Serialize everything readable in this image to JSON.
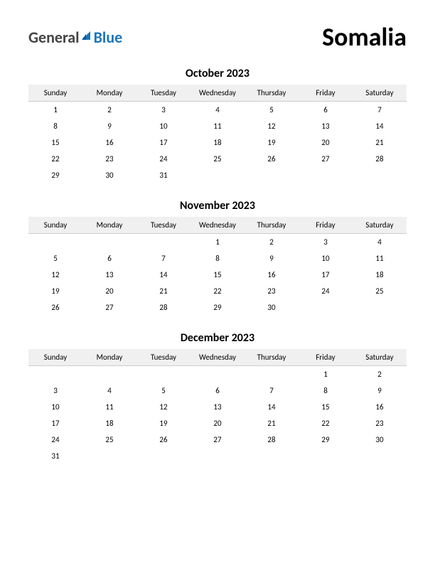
{
  "logo": {
    "word1": "General",
    "word2": "Blue",
    "word1_color": "#444444",
    "word2_color": "#1a75bc",
    "icon_color": "#1a75bc"
  },
  "country": "Somalia",
  "header_row_bg": "#f0f0f0",
  "header_border": "#cccccc",
  "day_headers": [
    "Sunday",
    "Monday",
    "Tuesday",
    "Wednesday",
    "Thursday",
    "Friday",
    "Saturday"
  ],
  "months": [
    {
      "title": "October 2023",
      "weeks": [
        [
          "1",
          "2",
          "3",
          "4",
          "5",
          "6",
          "7"
        ],
        [
          "8",
          "9",
          "10",
          "11",
          "12",
          "13",
          "14"
        ],
        [
          "15",
          "16",
          "17",
          "18",
          "19",
          "20",
          "21"
        ],
        [
          "22",
          "23",
          "24",
          "25",
          "26",
          "27",
          "28"
        ],
        [
          "29",
          "30",
          "31",
          "",
          "",
          "",
          ""
        ]
      ]
    },
    {
      "title": "November 2023",
      "weeks": [
        [
          "",
          "",
          "",
          "1",
          "2",
          "3",
          "4"
        ],
        [
          "5",
          "6",
          "7",
          "8",
          "9",
          "10",
          "11"
        ],
        [
          "12",
          "13",
          "14",
          "15",
          "16",
          "17",
          "18"
        ],
        [
          "19",
          "20",
          "21",
          "22",
          "23",
          "24",
          "25"
        ],
        [
          "26",
          "27",
          "28",
          "29",
          "30",
          "",
          ""
        ]
      ]
    },
    {
      "title": "December 2023",
      "weeks": [
        [
          "",
          "",
          "",
          "",
          "",
          "1",
          "2"
        ],
        [
          "3",
          "4",
          "5",
          "6",
          "7",
          "8",
          "9"
        ],
        [
          "10",
          "11",
          "12",
          "13",
          "14",
          "15",
          "16"
        ],
        [
          "17",
          "18",
          "19",
          "20",
          "21",
          "22",
          "23"
        ],
        [
          "24",
          "25",
          "26",
          "27",
          "28",
          "29",
          "30"
        ],
        [
          "31",
          "",
          "",
          "",
          "",
          "",
          ""
        ]
      ]
    }
  ]
}
